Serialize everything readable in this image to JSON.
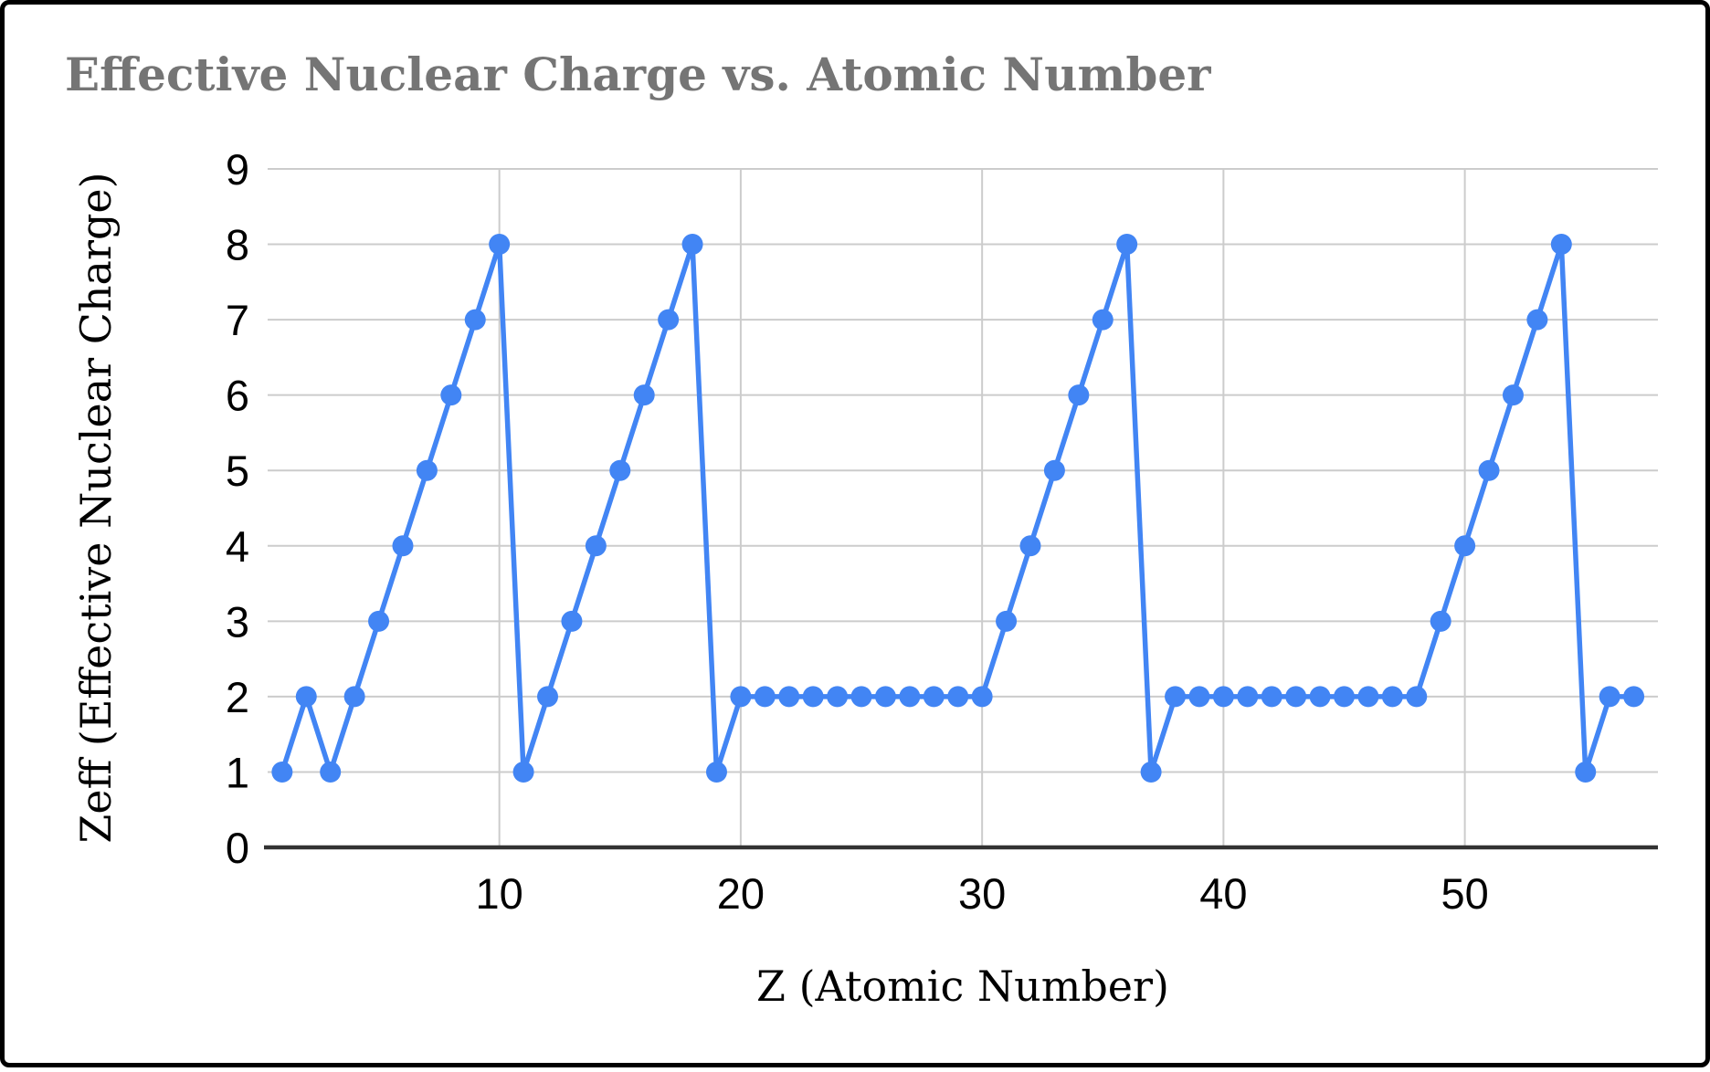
{
  "window": {
    "background": "#ffffff",
    "border_color": "#000000"
  },
  "chart_data": {
    "type": "line",
    "title": "Effective Nuclear Charge vs. Atomic Number",
    "xlabel": "Z (Atomic Number)",
    "ylabel": "Zeff (Effective Nuclear Charge)",
    "x": [
      1,
      2,
      3,
      4,
      5,
      6,
      7,
      8,
      9,
      10,
      11,
      12,
      13,
      14,
      15,
      16,
      17,
      18,
      19,
      20,
      21,
      22,
      23,
      24,
      25,
      26,
      27,
      28,
      29,
      30,
      31,
      32,
      33,
      34,
      35,
      36,
      37,
      38,
      39,
      40,
      41,
      42,
      43,
      44,
      45,
      46,
      47,
      48,
      49,
      50,
      51,
      52,
      53,
      54,
      55,
      56,
      57
    ],
    "values": [
      1,
      2,
      1,
      2,
      3,
      4,
      5,
      6,
      7,
      8,
      1,
      2,
      3,
      4,
      5,
      6,
      7,
      8,
      1,
      2,
      2,
      2,
      2,
      2,
      2,
      2,
      2,
      2,
      2,
      2,
      3,
      4,
      5,
      6,
      7,
      8,
      1,
      2,
      2,
      2,
      2,
      2,
      2,
      2,
      2,
      2,
      2,
      2,
      3,
      4,
      5,
      6,
      7,
      8,
      1,
      2,
      2
    ],
    "x_ticks": [
      10,
      20,
      30,
      40,
      50
    ],
    "y_ticks": [
      0,
      1,
      2,
      3,
      4,
      5,
      6,
      7,
      8,
      9
    ],
    "xlim": [
      0.4,
      58
    ],
    "ylim": [
      0,
      9
    ],
    "grid": true,
    "legend": "none",
    "marker": "circle",
    "colors": {
      "series": "#4285f4",
      "grid": "#cccccc",
      "axis_line": "#333333",
      "tick_text": "#000000",
      "title_text": "#757575",
      "axis_title_text": "#000000"
    }
  }
}
